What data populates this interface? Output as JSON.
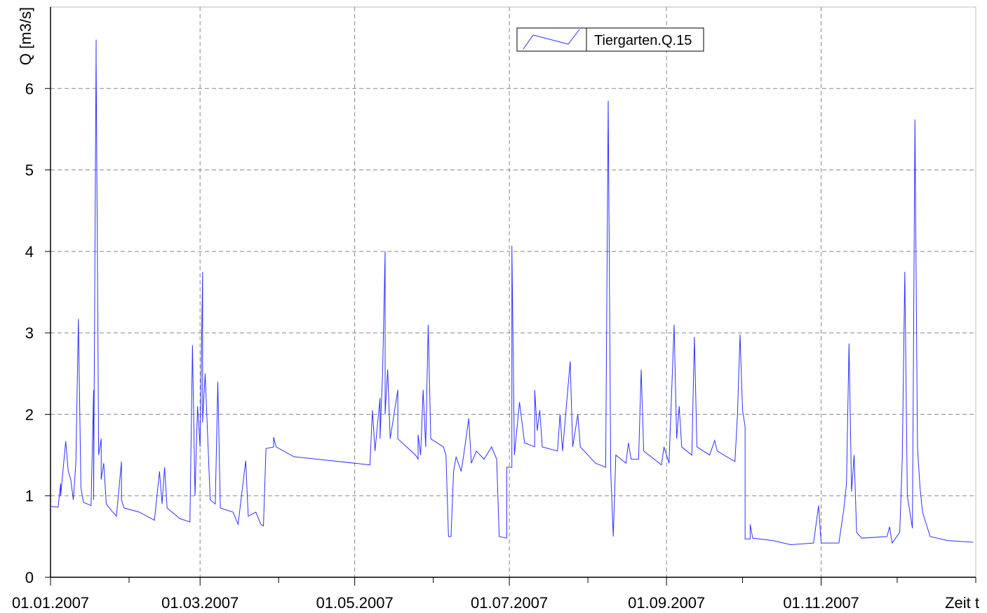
{
  "chart_data": {
    "type": "line",
    "ylabel": "Q [m3/s]",
    "xlabel": "Zeit t",
    "label_color": "#0000ff",
    "legend": "top",
    "grid": true,
    "ylim": [
      0,
      7
    ],
    "yticks": [
      0,
      1,
      2,
      3,
      4,
      5,
      6
    ],
    "xlim": [
      "2007-01-01",
      "2008-01-01"
    ],
    "xticks": [
      {
        "value": "2007-01-01",
        "label": "01.01.2007"
      },
      {
        "value": "2007-03-01",
        "label": "01.03.2007"
      },
      {
        "value": "2007-05-01",
        "label": "01.05.2007"
      },
      {
        "value": "2007-07-01",
        "label": "01.07.2007"
      },
      {
        "value": "2007-09-01",
        "label": "01.09.2007"
      },
      {
        "value": "2007-11-01",
        "label": "01.11.2007"
      }
    ],
    "xticks_minor": [
      "2007-02-01",
      "2007-04-01",
      "2007-06-01",
      "2007-08-01",
      "2007-10-01",
      "2007-12-01",
      "2008-01-01"
    ],
    "x": [
      "2007-01-01",
      "2007-01-04",
      "2007-01-05",
      "2007-01-05",
      "2007-01-07",
      "2007-01-08",
      "2007-01-09",
      "2007-01-10",
      "2007-01-11",
      "2007-01-12",
      "2007-01-13",
      "2007-01-14",
      "2007-01-17",
      "2007-01-18",
      "2007-01-18",
      "2007-01-19",
      "2007-01-19",
      "2007-01-20",
      "2007-01-21",
      "2007-01-21",
      "2007-01-22",
      "2007-01-23",
      "2007-01-25",
      "2007-01-27",
      "2007-01-29",
      "2007-01-29",
      "2007-01-30",
      "2007-02-05",
      "2007-02-11",
      "2007-02-13",
      "2007-02-14",
      "2007-02-15",
      "2007-02-16",
      "2007-02-21",
      "2007-02-25",
      "2007-02-26",
      "2007-02-27",
      "2007-02-28",
      "2007-03-01",
      "2007-03-02",
      "2007-03-02",
      "2007-03-03",
      "2007-03-05",
      "2007-03-07",
      "2007-03-08",
      "2007-03-09",
      "2007-03-14",
      "2007-03-16",
      "2007-03-19",
      "2007-03-20",
      "2007-03-23",
      "2007-03-25",
      "2007-03-26",
      "2007-03-27",
      "2007-03-30",
      "2007-03-30",
      "2007-03-31",
      "2007-04-07",
      "2007-04-16",
      "2007-05-07",
      "2007-05-08",
      "2007-05-09",
      "2007-05-11",
      "2007-05-11",
      "2007-05-12",
      "2007-05-13",
      "2007-05-13",
      "2007-05-14",
      "2007-05-15",
      "2007-05-18",
      "2007-05-18",
      "2007-05-25",
      "2007-05-26",
      "2007-05-26",
      "2007-05-27",
      "2007-05-28",
      "2007-05-29",
      "2007-05-30",
      "2007-05-31",
      "2007-06-05",
      "2007-06-06",
      "2007-06-07",
      "2007-06-08",
      "2007-06-09",
      "2007-06-10",
      "2007-06-12",
      "2007-06-13",
      "2007-06-15",
      "2007-06-16",
      "2007-06-18",
      "2007-06-21",
      "2007-06-24",
      "2007-06-26",
      "2007-06-27",
      "2007-06-30",
      "2007-06-30",
      "2007-07-02",
      "2007-07-02",
      "2007-07-03",
      "2007-07-05",
      "2007-07-07",
      "2007-07-11",
      "2007-07-11",
      "2007-07-12",
      "2007-07-13",
      "2007-07-14",
      "2007-07-20",
      "2007-07-21",
      "2007-07-22",
      "2007-07-25",
      "2007-07-26",
      "2007-07-28",
      "2007-07-29",
      "2007-08-04",
      "2007-08-08",
      "2007-08-09",
      "2007-08-10",
      "2007-08-11",
      "2007-08-12",
      "2007-08-16",
      "2007-08-17",
      "2007-08-18",
      "2007-08-21",
      "2007-08-22",
      "2007-08-23",
      "2007-08-30",
      "2007-08-31",
      "2007-09-02",
      "2007-09-04",
      "2007-09-05",
      "2007-09-06",
      "2007-09-07",
      "2007-09-11",
      "2007-09-12",
      "2007-09-13",
      "2007-09-18",
      "2007-09-20",
      "2007-09-21",
      "2007-09-28",
      "2007-09-29",
      "2007-09-30",
      "2007-10-01",
      "2007-10-02",
      "2007-10-02",
      "2007-10-04",
      "2007-10-04",
      "2007-10-05",
      "2007-10-13",
      "2007-10-20",
      "2007-10-29",
      "2007-10-31",
      "2007-11-01",
      "2007-11-08",
      "2007-11-10",
      "2007-11-11",
      "2007-11-12",
      "2007-11-13",
      "2007-11-14",
      "2007-11-15",
      "2007-11-17",
      "2007-11-27",
      "2007-11-28",
      "2007-11-29",
      "2007-12-02",
      "2007-12-03",
      "2007-12-04",
      "2007-12-05",
      "2007-12-07",
      "2007-12-08",
      "2007-12-09",
      "2007-12-10",
      "2007-12-11",
      "2007-12-14",
      "2007-12-21",
      "2007-12-31"
    ],
    "series": [
      {
        "name": "Tiergarten.Q.15",
        "color": "#3030ff",
        "values": [
          0.87,
          0.86,
          1.15,
          1.0,
          1.67,
          1.3,
          1.2,
          0.95,
          1.4,
          3.17,
          1.1,
          0.92,
          0.88,
          2.3,
          0.95,
          6.6,
          6.35,
          1.5,
          1.7,
          1.2,
          1.4,
          0.9,
          0.82,
          0.75,
          1.42,
          0.95,
          0.85,
          0.8,
          0.7,
          1.3,
          0.9,
          1.35,
          0.85,
          0.72,
          0.68,
          2.85,
          1.0,
          2.1,
          1.6,
          3.75,
          1.9,
          2.5,
          0.95,
          0.9,
          2.4,
          0.85,
          0.8,
          0.65,
          1.43,
          0.75,
          0.8,
          0.65,
          0.63,
          1.58,
          1.6,
          1.72,
          1.6,
          1.48,
          1.45,
          1.38,
          2.05,
          1.55,
          2.2,
          1.7,
          2.5,
          4.0,
          2.0,
          2.55,
          1.7,
          2.3,
          1.7,
          1.5,
          1.45,
          1.75,
          1.5,
          2.3,
          1.6,
          3.1,
          1.7,
          1.6,
          1.5,
          0.5,
          0.5,
          1.3,
          1.48,
          1.3,
          1.5,
          1.95,
          1.4,
          1.55,
          1.45,
          1.6,
          1.45,
          0.5,
          0.48,
          1.35,
          1.35,
          4.07,
          1.5,
          2.15,
          1.65,
          1.6,
          2.3,
          1.8,
          2.05,
          1.6,
          1.55,
          2.0,
          1.55,
          2.65,
          1.6,
          2.0,
          1.6,
          1.4,
          1.35,
          5.85,
          1.3,
          0.5,
          1.5,
          1.4,
          1.65,
          1.45,
          1.45,
          2.55,
          1.55,
          1.38,
          1.6,
          1.4,
          3.1,
          1.7,
          2.1,
          1.6,
          1.5,
          2.95,
          1.6,
          1.5,
          1.68,
          1.55,
          1.42,
          2.0,
          2.98,
          2.05,
          1.85,
          0.47,
          0.47,
          0.65,
          0.48,
          0.45,
          0.4,
          0.42,
          0.88,
          0.42,
          0.42,
          0.85,
          1.15,
          2.87,
          1.05,
          1.5,
          0.55,
          0.48,
          0.5,
          0.62,
          0.42,
          0.55,
          1.45,
          3.75,
          1.0,
          0.6,
          5.62,
          1.6,
          1.1,
          0.8,
          0.5,
          0.45,
          0.43
        ]
      }
    ]
  }
}
